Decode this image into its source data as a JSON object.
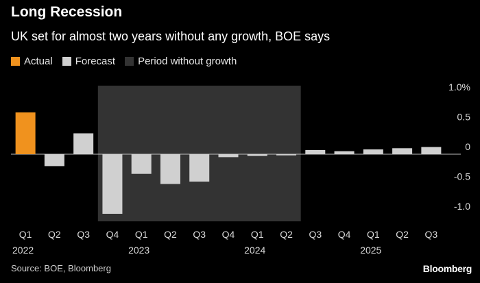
{
  "header": {
    "title": "Long Recession",
    "subtitle": "UK set for almost two years without any growth, BOE says"
  },
  "legend": [
    {
      "label": "Actual",
      "color": "#f0921e"
    },
    {
      "label": "Forecast",
      "color": "#d0d0d0"
    },
    {
      "label": "Period without growth",
      "color": "#333333"
    }
  ],
  "footer": {
    "source": "Source: BOE, Bloomberg",
    "brand": "Bloomberg"
  },
  "chart_data": {
    "type": "bar",
    "categories": [
      "Q1",
      "Q2",
      "Q3",
      "Q4",
      "Q1",
      "Q2",
      "Q3",
      "Q4",
      "Q1",
      "Q2",
      "Q3",
      "Q4",
      "Q1",
      "Q2",
      "Q3"
    ],
    "year_labels": [
      {
        "index": 0,
        "label": "2022"
      },
      {
        "index": 4,
        "label": "2023"
      },
      {
        "index": 8,
        "label": "2024"
      },
      {
        "index": 12,
        "label": "2025"
      }
    ],
    "values": [
      0.7,
      -0.2,
      0.35,
      -1.0,
      -0.33,
      -0.5,
      -0.46,
      -0.05,
      -0.03,
      -0.02,
      0.07,
      0.05,
      0.08,
      0.1,
      0.12
    ],
    "kinds": [
      "actual",
      "forecast",
      "forecast",
      "forecast",
      "forecast",
      "forecast",
      "forecast",
      "forecast",
      "forecast",
      "forecast",
      "forecast",
      "forecast",
      "forecast",
      "forecast",
      "forecast"
    ],
    "shaded_period": {
      "from_index": 3,
      "to_index": 9,
      "label": "Period without growth"
    },
    "ylim": [
      -1.1,
      1.1
    ],
    "yticks": [
      {
        "value": 1.0,
        "label": "1.0%"
      },
      {
        "value": 0.5,
        "label": "0.5"
      },
      {
        "value": 0,
        "label": "0"
      },
      {
        "value": -0.5,
        "label": "-0.5"
      },
      {
        "value": -1.0,
        "label": "-1.0"
      }
    ],
    "colors": {
      "actual": "#f0921e",
      "forecast": "#d0d0d0",
      "shade": "#333333",
      "zero_line": "#bdbdbd"
    }
  }
}
